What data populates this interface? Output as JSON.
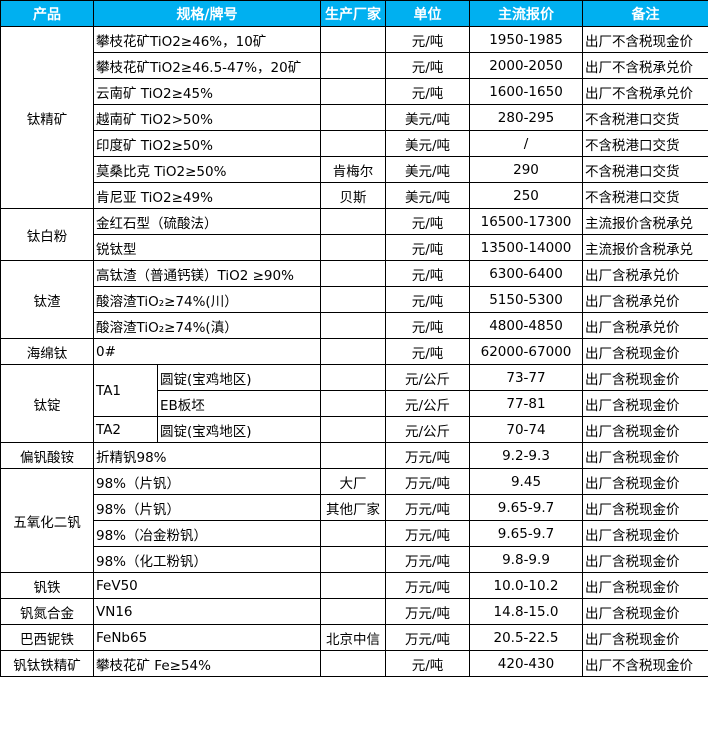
{
  "header": {
    "product": "产品",
    "spec": "规格/牌号",
    "maker": "生产厂家",
    "unit": "单位",
    "price": "主流报价",
    "note": "备注"
  },
  "colors": {
    "header_bg": "#00b0f0",
    "header_text": "#ffffff"
  },
  "groups": [
    {
      "product": "钛精矿",
      "rows": [
        {
          "spec": "攀枝花矿TiO2≥46%，10矿",
          "maker": "",
          "unit": "元/吨",
          "price": "1950-1985",
          "note": "出厂不含税现金价"
        },
        {
          "spec": "攀枝花矿TiO2≥46.5-47%，20矿",
          "maker": "",
          "unit": "元/吨",
          "price": "2000-2050",
          "note": "出厂不含税承兑价"
        },
        {
          "spec": "云南矿 TiO2≥45%",
          "maker": "",
          "unit": "元/吨",
          "price": "1600-1650",
          "note": "出厂不含税承兑价"
        },
        {
          "spec": "越南矿 TiO2>50%",
          "maker": "",
          "unit": "美元/吨",
          "price": "280-295",
          "note": "不含税港口交货"
        },
        {
          "spec": "印度矿 TiO2≥50%",
          "maker": "",
          "unit": "美元/吨",
          "price": "/",
          "note": "不含税港口交货"
        },
        {
          "spec": "莫桑比克 TiO2≥50%",
          "maker": "肯梅尔",
          "unit": "美元/吨",
          "price": "290",
          "note": "不含税港口交货"
        },
        {
          "spec": "肯尼亚 TiO2≥49%",
          "maker": "贝斯",
          "unit": "美元/吨",
          "price": "250",
          "note": "不含税港口交货"
        }
      ]
    },
    {
      "product": "钛白粉",
      "rows": [
        {
          "spec": "金红石型（硫酸法）",
          "maker": "",
          "unit": "元/吨",
          "price": "16500-17300",
          "note": "主流报价含税承兑"
        },
        {
          "spec": "锐钛型",
          "maker": "",
          "unit": "元/吨",
          "price": "13500-14000",
          "note": "主流报价含税承兑"
        }
      ]
    },
    {
      "product": "钛渣",
      "rows": [
        {
          "spec": "高钛渣（普通钙镁）TiO2 ≥90%",
          "maker": "",
          "unit": "元/吨",
          "price": "6300-6400",
          "note": "出厂含税承兑价"
        },
        {
          "spec": "酸溶渣TiO₂≥74%(川）",
          "maker": "",
          "unit": "元/吨",
          "price": "5150-5300",
          "note": "出厂含税承兑价"
        },
        {
          "spec": "酸溶渣TiO₂≥74%(滇）",
          "maker": "",
          "unit": "元/吨",
          "price": "4800-4850",
          "note": "出厂含税承兑价"
        }
      ]
    },
    {
      "product": "海绵钛",
      "rows": [
        {
          "spec": "0#",
          "maker": "",
          "unit": "元/吨",
          "price": "62000-67000",
          "note": "出厂含税现金价"
        }
      ]
    },
    {
      "product": "钛锭",
      "rows": [
        {
          "grade": "TA1",
          "grade_span": 2,
          "sub": "圆锭(宝鸡地区)",
          "maker": "",
          "unit": "元/公斤",
          "price": "73-77",
          "note": "出厂含税现金价"
        },
        {
          "sub": "EB板坯",
          "maker": "",
          "unit": "元/公斤",
          "price": "77-81",
          "note": "出厂含税现金价"
        },
        {
          "grade": "TA2",
          "grade_span": 1,
          "sub": "圆锭(宝鸡地区)",
          "maker": "",
          "unit": "元/公斤",
          "price": "70-74",
          "note": "出厂含税现金价"
        }
      ]
    },
    {
      "product": "偏钒酸铵",
      "rows": [
        {
          "spec": "折精钒98%",
          "maker": "",
          "unit": "万元/吨",
          "price": "9.2-9.3",
          "note": "出厂含税现金价"
        }
      ]
    },
    {
      "product": "五氧化二钒",
      "rows": [
        {
          "spec": "98%（片钒）",
          "maker": "大厂",
          "unit": "万元/吨",
          "price": "9.45",
          "note": "出厂含税现金价"
        },
        {
          "spec": "98%（片钒）",
          "maker": "其他厂家",
          "unit": "万元/吨",
          "price": "9.65-9.7",
          "note": "出厂含税现金价"
        },
        {
          "spec": "98%（冶金粉钒）",
          "maker": "",
          "unit": "万元/吨",
          "price": "9.65-9.7",
          "note": "出厂含税现金价"
        },
        {
          "spec": "98%（化工粉钒）",
          "maker": "",
          "unit": "万元/吨",
          "price": "9.8-9.9",
          "note": "出厂含税现金价"
        }
      ]
    },
    {
      "product": "钒铁",
      "rows": [
        {
          "spec": "FeV50",
          "maker": "",
          "unit": "万元/吨",
          "price": "10.0-10.2",
          "note": "出厂含税现金价"
        }
      ]
    },
    {
      "product": "钒氮合金",
      "rows": [
        {
          "spec": "VN16",
          "maker": "",
          "unit": "万元/吨",
          "price": "14.8-15.0",
          "note": "出厂含税现金价"
        }
      ]
    },
    {
      "product": "巴西铌铁",
      "rows": [
        {
          "spec": "FeNb65",
          "maker": "北京中信",
          "unit": "万元/吨",
          "price": "20.5-22.5",
          "note": "出厂含税现金价"
        }
      ]
    },
    {
      "product": "钒钛铁精矿",
      "rows": [
        {
          "spec": "攀枝花矿 Fe≥54%",
          "maker": "",
          "unit": "元/吨",
          "price": "420-430",
          "note": "出厂不含税现金价"
        }
      ]
    }
  ]
}
